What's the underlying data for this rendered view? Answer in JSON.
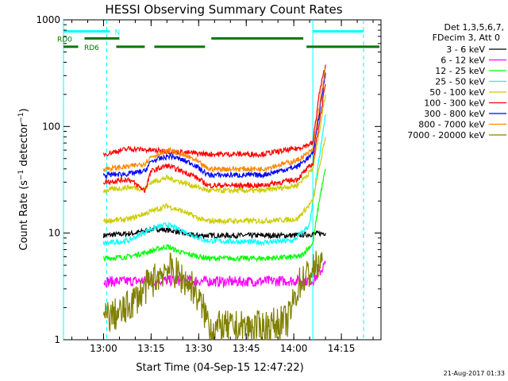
{
  "chart_data": {
    "type": "line",
    "title": "HESSI Observing Summary Count Rates",
    "xlabel": "Start Time (04-Sep-15 12:47:22)",
    "ylabel_parts": {
      "main": "Count Rate (s",
      "sup1": "−1",
      "mid": " detector",
      "sup2": "−1",
      "end": ")"
    },
    "y_scale": "log",
    "ylim": [
      1,
      1000
    ],
    "xlim_minutes": [
      "12:47:22",
      "14:27:30"
    ],
    "x_ticks": [
      "13:00",
      "13:15",
      "13:30",
      "13:45",
      "14:00",
      "14:15"
    ],
    "y_ticks": [
      "1",
      "10",
      "100",
      "1000"
    ],
    "legend_header": [
      "Det 1,3,5,6,7,",
      "FDecim 3, Att 0"
    ],
    "legend_position": "right",
    "series": [
      {
        "name": "3 - 6 keV",
        "color": "#000000",
        "segments": [
          [
            [
              "13:00",
              9.5
            ],
            [
              "13:10",
              10
            ],
            [
              "13:16",
              11
            ],
            [
              "13:22",
              10.5
            ],
            [
              "13:28",
              9.5
            ],
            [
              "13:35",
              9.5
            ],
            [
              "13:50",
              9.5
            ],
            [
              "14:00",
              9.5
            ],
            [
              "14:10",
              10
            ]
          ]
        ]
      },
      {
        "name": "6 - 12 keV",
        "color": "#ff00ff",
        "segments": [
          [
            [
              "13:00",
              3.5
            ],
            [
              "13:20",
              3.6
            ],
            [
              "13:40",
              3.5
            ],
            [
              "14:06",
              3.6
            ],
            [
              "14:08",
              4.2
            ],
            [
              "14:10",
              5.2
            ]
          ]
        ]
      },
      {
        "name": "12 - 25 keV",
        "color": "#00ff00",
        "segments": [
          [
            [
              "13:00",
              5.8
            ],
            [
              "13:08",
              6.0
            ],
            [
              "13:15",
              6.8
            ],
            [
              "13:20",
              7.5
            ],
            [
              "13:25",
              6.5
            ],
            [
              "13:33",
              5.8
            ],
            [
              "13:50",
              5.8
            ],
            [
              "14:02",
              6.0
            ],
            [
              "14:06",
              8
            ],
            [
              "14:08",
              20
            ],
            [
              "14:10",
              40
            ]
          ]
        ]
      },
      {
        "name": "25 - 50 keV",
        "color": "#00ffff",
        "segments": [
          [
            [
              "13:00",
              8.0
            ],
            [
              "13:08",
              8.5
            ],
            [
              "13:15",
              11
            ],
            [
              "13:20",
              12
            ],
            [
              "13:25",
              10.5
            ],
            [
              "13:32",
              8.5
            ],
            [
              "13:50",
              8.2
            ],
            [
              "14:00",
              8.5
            ],
            [
              "14:05",
              12
            ],
            [
              "14:08",
              50
            ],
            [
              "14:10",
              130
            ]
          ]
        ]
      },
      {
        "name": "50 - 100 keV",
        "color": "#cccc00",
        "segments": [
          [
            [
              "13:00",
              13
            ],
            [
              "13:08",
              13.5
            ],
            [
              "13:15",
              16
            ],
            [
              "13:20",
              18
            ],
            [
              "13:25",
              16
            ],
            [
              "13:32",
              13
            ],
            [
              "13:50",
              13
            ],
            [
              "14:01",
              13.5
            ],
            [
              "14:06",
              20
            ],
            [
              "14:10",
              80
            ]
          ],
          [
            [
              "13:00",
              25
            ],
            [
              "13:08",
              27
            ],
            [
              "13:13",
              26
            ],
            [
              "13:15",
              30
            ],
            [
              "13:20",
              33
            ],
            [
              "13:28",
              28
            ],
            [
              "13:33",
              25
            ],
            [
              "13:50",
              25
            ],
            [
              "14:01",
              28
            ],
            [
              "14:06",
              40
            ],
            [
              "14:10",
              200
            ]
          ]
        ]
      },
      {
        "name": "100 - 300 keV",
        "color": "#ff0000",
        "segments": [
          [
            [
              "13:00",
              30
            ],
            [
              "13:08",
              32
            ],
            [
              "13:13",
              25
            ],
            [
              "13:15",
              38
            ],
            [
              "13:20",
              43
            ],
            [
              "13:28",
              35
            ],
            [
              "13:33",
              28
            ],
            [
              "13:50",
              28
            ],
            [
              "14:01",
              32
            ],
            [
              "14:06",
              45
            ],
            [
              "14:10",
              250
            ]
          ],
          [
            [
              "13:00",
              55
            ],
            [
              "13:08",
              62
            ],
            [
              "13:33",
              55
            ],
            [
              "13:50",
              55
            ],
            [
              "14:01",
              62
            ],
            [
              "14:06",
              70
            ],
            [
              "14:08",
              200
            ],
            [
              "14:10",
              380
            ]
          ]
        ]
      },
      {
        "name": "300 - 800 keV",
        "color": "#0000ff",
        "segments": [
          [
            [
              "13:00",
              35
            ],
            [
              "13:08",
              36
            ],
            [
              "13:13",
              38
            ],
            [
              "13:15",
              47
            ],
            [
              "13:21",
              53
            ],
            [
              "13:28",
              45
            ],
            [
              "13:33",
              35
            ],
            [
              "13:50",
              35
            ],
            [
              "14:01",
              42
            ],
            [
              "14:06",
              55
            ],
            [
              "14:08",
              130
            ],
            [
              "14:10",
              320
            ]
          ]
        ]
      },
      {
        "name": "800 - 7000 keV",
        "color": "#ff8800",
        "segments": [
          [
            [
              "13:00",
              40
            ],
            [
              "13:08",
              42
            ],
            [
              "13:13",
              45
            ],
            [
              "13:15",
              52
            ],
            [
              "13:21",
              60
            ],
            [
              "13:28",
              50
            ],
            [
              "13:33",
              40
            ],
            [
              "13:50",
              40
            ],
            [
              "14:01",
              48
            ],
            [
              "14:06",
              60
            ],
            [
              "14:08",
              150
            ],
            [
              "14:10",
              350
            ]
          ]
        ]
      },
      {
        "name": "7000 - 20000 keV",
        "color": "#808000",
        "segments": [
          [
            [
              "13:00",
              1.6
            ],
            [
              "13:06",
              1.8
            ],
            [
              "13:13",
              3.0
            ],
            [
              "13:20",
              4.8
            ],
            [
              "13:28",
              3.2
            ],
            [
              "13:34",
              1.3
            ],
            [
              "13:50",
              1.3
            ],
            [
              "13:58",
              1.5
            ],
            [
              "14:02",
              3.5
            ],
            [
              "14:06",
              4.5
            ],
            [
              "14:09",
              5.5
            ]
          ]
        ]
      }
    ],
    "bars": [
      {
        "name": "N",
        "color": "#00ffff",
        "label": "N",
        "level": 780,
        "spans": [
          [
            "12:47:22",
            "13:02"
          ],
          [
            "14:06",
            "14:22"
          ]
        ]
      },
      {
        "name": "RD0",
        "color": "#007700",
        "label": "RD0",
        "level": 670,
        "spans": [
          [
            "12:54",
            "13:05"
          ],
          [
            "13:34",
            "14:03"
          ]
        ]
      },
      {
        "name": "RD6",
        "color": "#007700",
        "label": "RD6",
        "level": 560,
        "spans": [
          [
            "12:47:22",
            "12:52"
          ],
          [
            "13:04",
            "13:13"
          ],
          [
            "13:16",
            "13:32"
          ],
          [
            "14:04",
            "14:27"
          ]
        ]
      }
    ],
    "vlines": [
      {
        "time": "13:01",
        "color": "#00ffff",
        "dashed": true
      },
      {
        "time": "14:06",
        "color": "#00ffff",
        "dashed": false
      },
      {
        "time": "14:22",
        "color": "#00ffff",
        "dashed": true
      },
      {
        "time": "12:47:22",
        "color": "#00ffff",
        "dashed": false
      }
    ]
  },
  "footer_timestamp": "21-Aug-2017 01:33"
}
